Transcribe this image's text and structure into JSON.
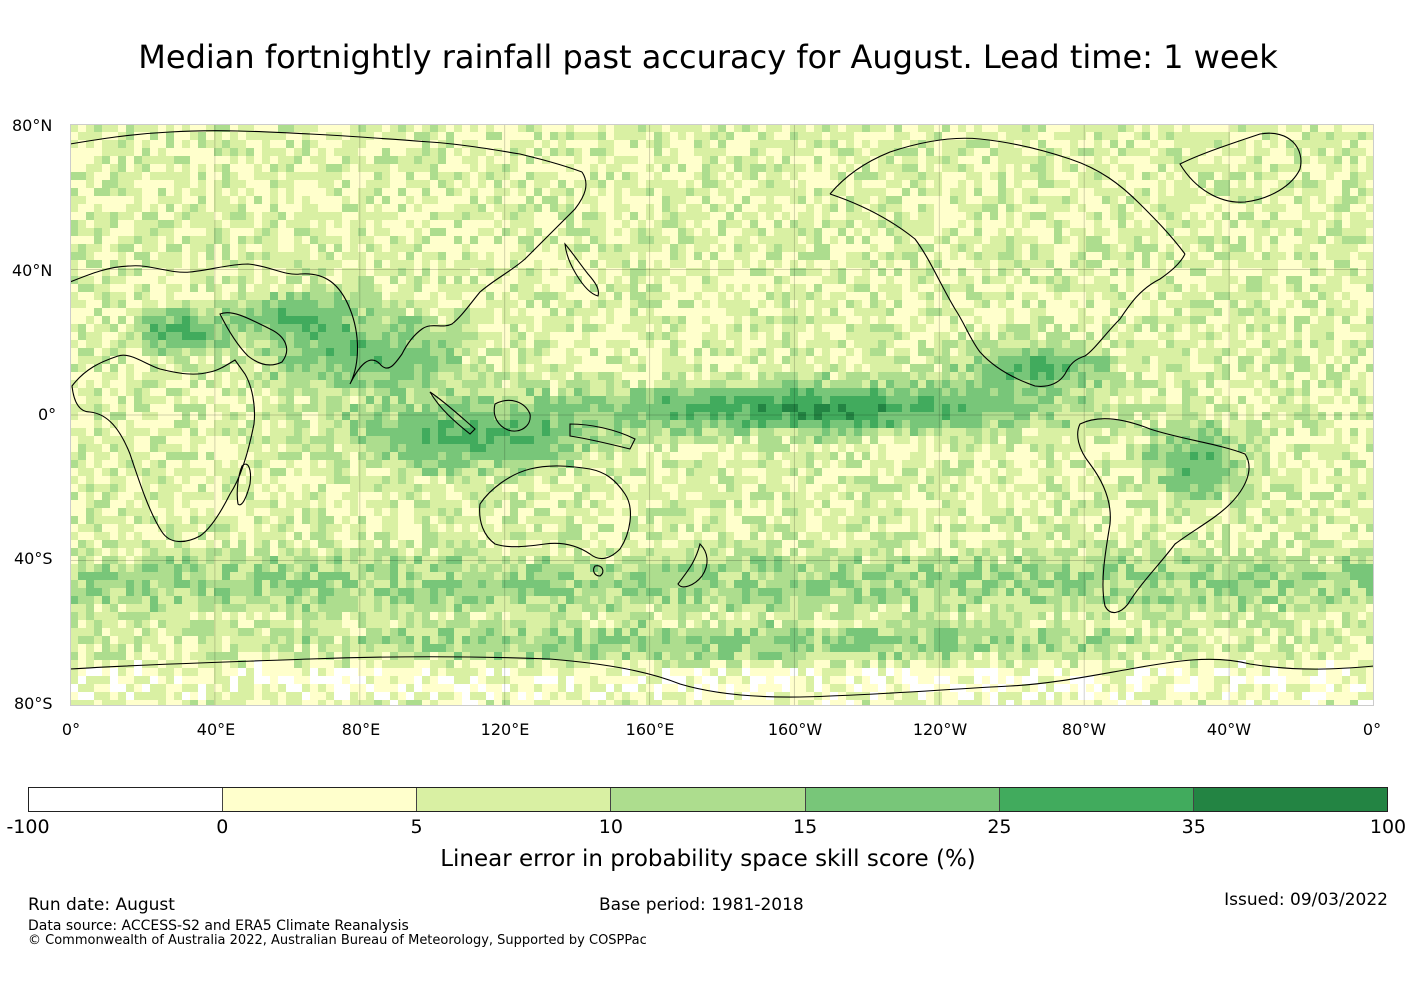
{
  "title": "Median fortnightly rainfall past accuracy for August. Lead time: 1 week",
  "map": {
    "lat_labels": [
      "80°N",
      "40°N",
      "0°",
      "40°S",
      "80°S"
    ],
    "lon_labels": [
      "0°",
      "40°E",
      "80°E",
      "120°E",
      "160°E",
      "160°W",
      "120°W",
      "80°W",
      "40°W",
      "0°"
    ]
  },
  "colorbar": {
    "label": "Linear error in probability space skill score (%)",
    "ticks": [
      "-100",
      "0",
      "5",
      "10",
      "15",
      "25",
      "35",
      "100"
    ],
    "colors": [
      "#ffffff",
      "#ffffcc",
      "#d9f0a3",
      "#addd8e",
      "#78c679",
      "#41ab5d",
      "#238443"
    ]
  },
  "footer": {
    "run_date": "Run date: August",
    "base_period": "Base period: 1981-2018",
    "issued": "Issued: 09/03/2022",
    "data_source": "Data source: ACCESS-S2 and ERA5 Climate Reanalysis",
    "copyright": "© Commonwealth of Australia 2022, Australian Bureau of Meteorology, Supported by COSPPac"
  }
}
